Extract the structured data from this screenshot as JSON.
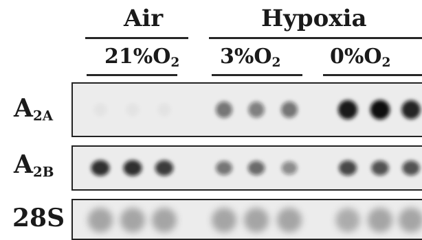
{
  "figure": {
    "group_labels": {
      "air": "Air",
      "hypoxia": "Hypoxia"
    },
    "conditions": [
      {
        "pre": "21%O",
        "sub": "2"
      },
      {
        "pre": "3%O",
        "sub": "2"
      },
      {
        "pre": "0%O",
        "sub": "2"
      }
    ],
    "rows": [
      {
        "main": "A",
        "sub": "2A"
      },
      {
        "main": "A",
        "sub": "2B"
      },
      {
        "main": "28S",
        "sub": ""
      }
    ],
    "lanes_per_condition": 3,
    "band_intensity": {
      "A2A": [
        0.04,
        0.04,
        0.04,
        0.55,
        0.5,
        0.55,
        0.95,
        1.0,
        0.9
      ],
      "A2B": [
        0.85,
        0.85,
        0.8,
        0.55,
        0.6,
        0.45,
        0.75,
        0.7,
        0.7
      ],
      "28S": [
        0.5,
        0.5,
        0.5,
        0.5,
        0.5,
        0.5,
        0.45,
        0.5,
        0.5
      ]
    },
    "colors": {
      "background": "#ffffff",
      "strip_background": "#ececec",
      "band": "#101010",
      "text": "#1a1a1a"
    }
  }
}
